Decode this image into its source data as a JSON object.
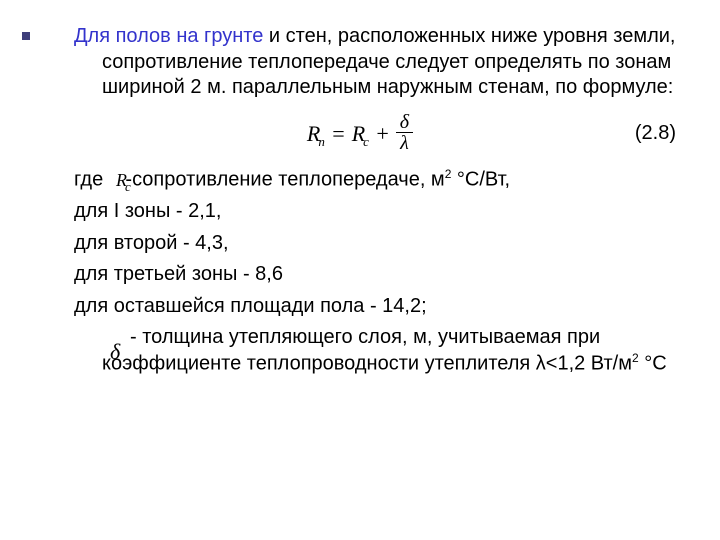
{
  "bullet_color": "#3e3e7a",
  "intro": {
    "highlight": "Для полов на грунте",
    "rest": " и стен, расположенных ниже уровня земли, сопротивление теплопередаче следует определять по зонам шириной 2 м. параллельным наружным стенам, по формуле:",
    "highlight_color": "#3333cc"
  },
  "formula": {
    "lhs_base": "R",
    "lhs_sub": "n",
    "rhs_base": "R",
    "rhs_sub": "c",
    "plus": "+",
    "frac_num": "δ",
    "frac_den": "λ",
    "eq_number": "(2.8)"
  },
  "where": {
    "prefix": "где ",
    "symbol_base": "R",
    "symbol_sub": "c",
    "dash_text": "-сопротивление теплопередаче, м",
    "unit_sup": "2",
    "unit_tail": " °C/Вт,"
  },
  "zones": {
    "z1": "для I зоны -  2,1,",
    "z2": "для второй - 4,3,",
    "z3": "для третьей зоны - 8,6",
    "z4": "для оставшейся площади пола - 14,2;"
  },
  "delta": {
    "dash": "-",
    "symbol": "δ",
    "text_a": " толщина утепляющего слоя, м, учитываемая при коэффициенте теплопроводности утеплителя λ<1,2 Вт/м",
    "unit_sup": "2",
    "unit_tail": " °C"
  }
}
